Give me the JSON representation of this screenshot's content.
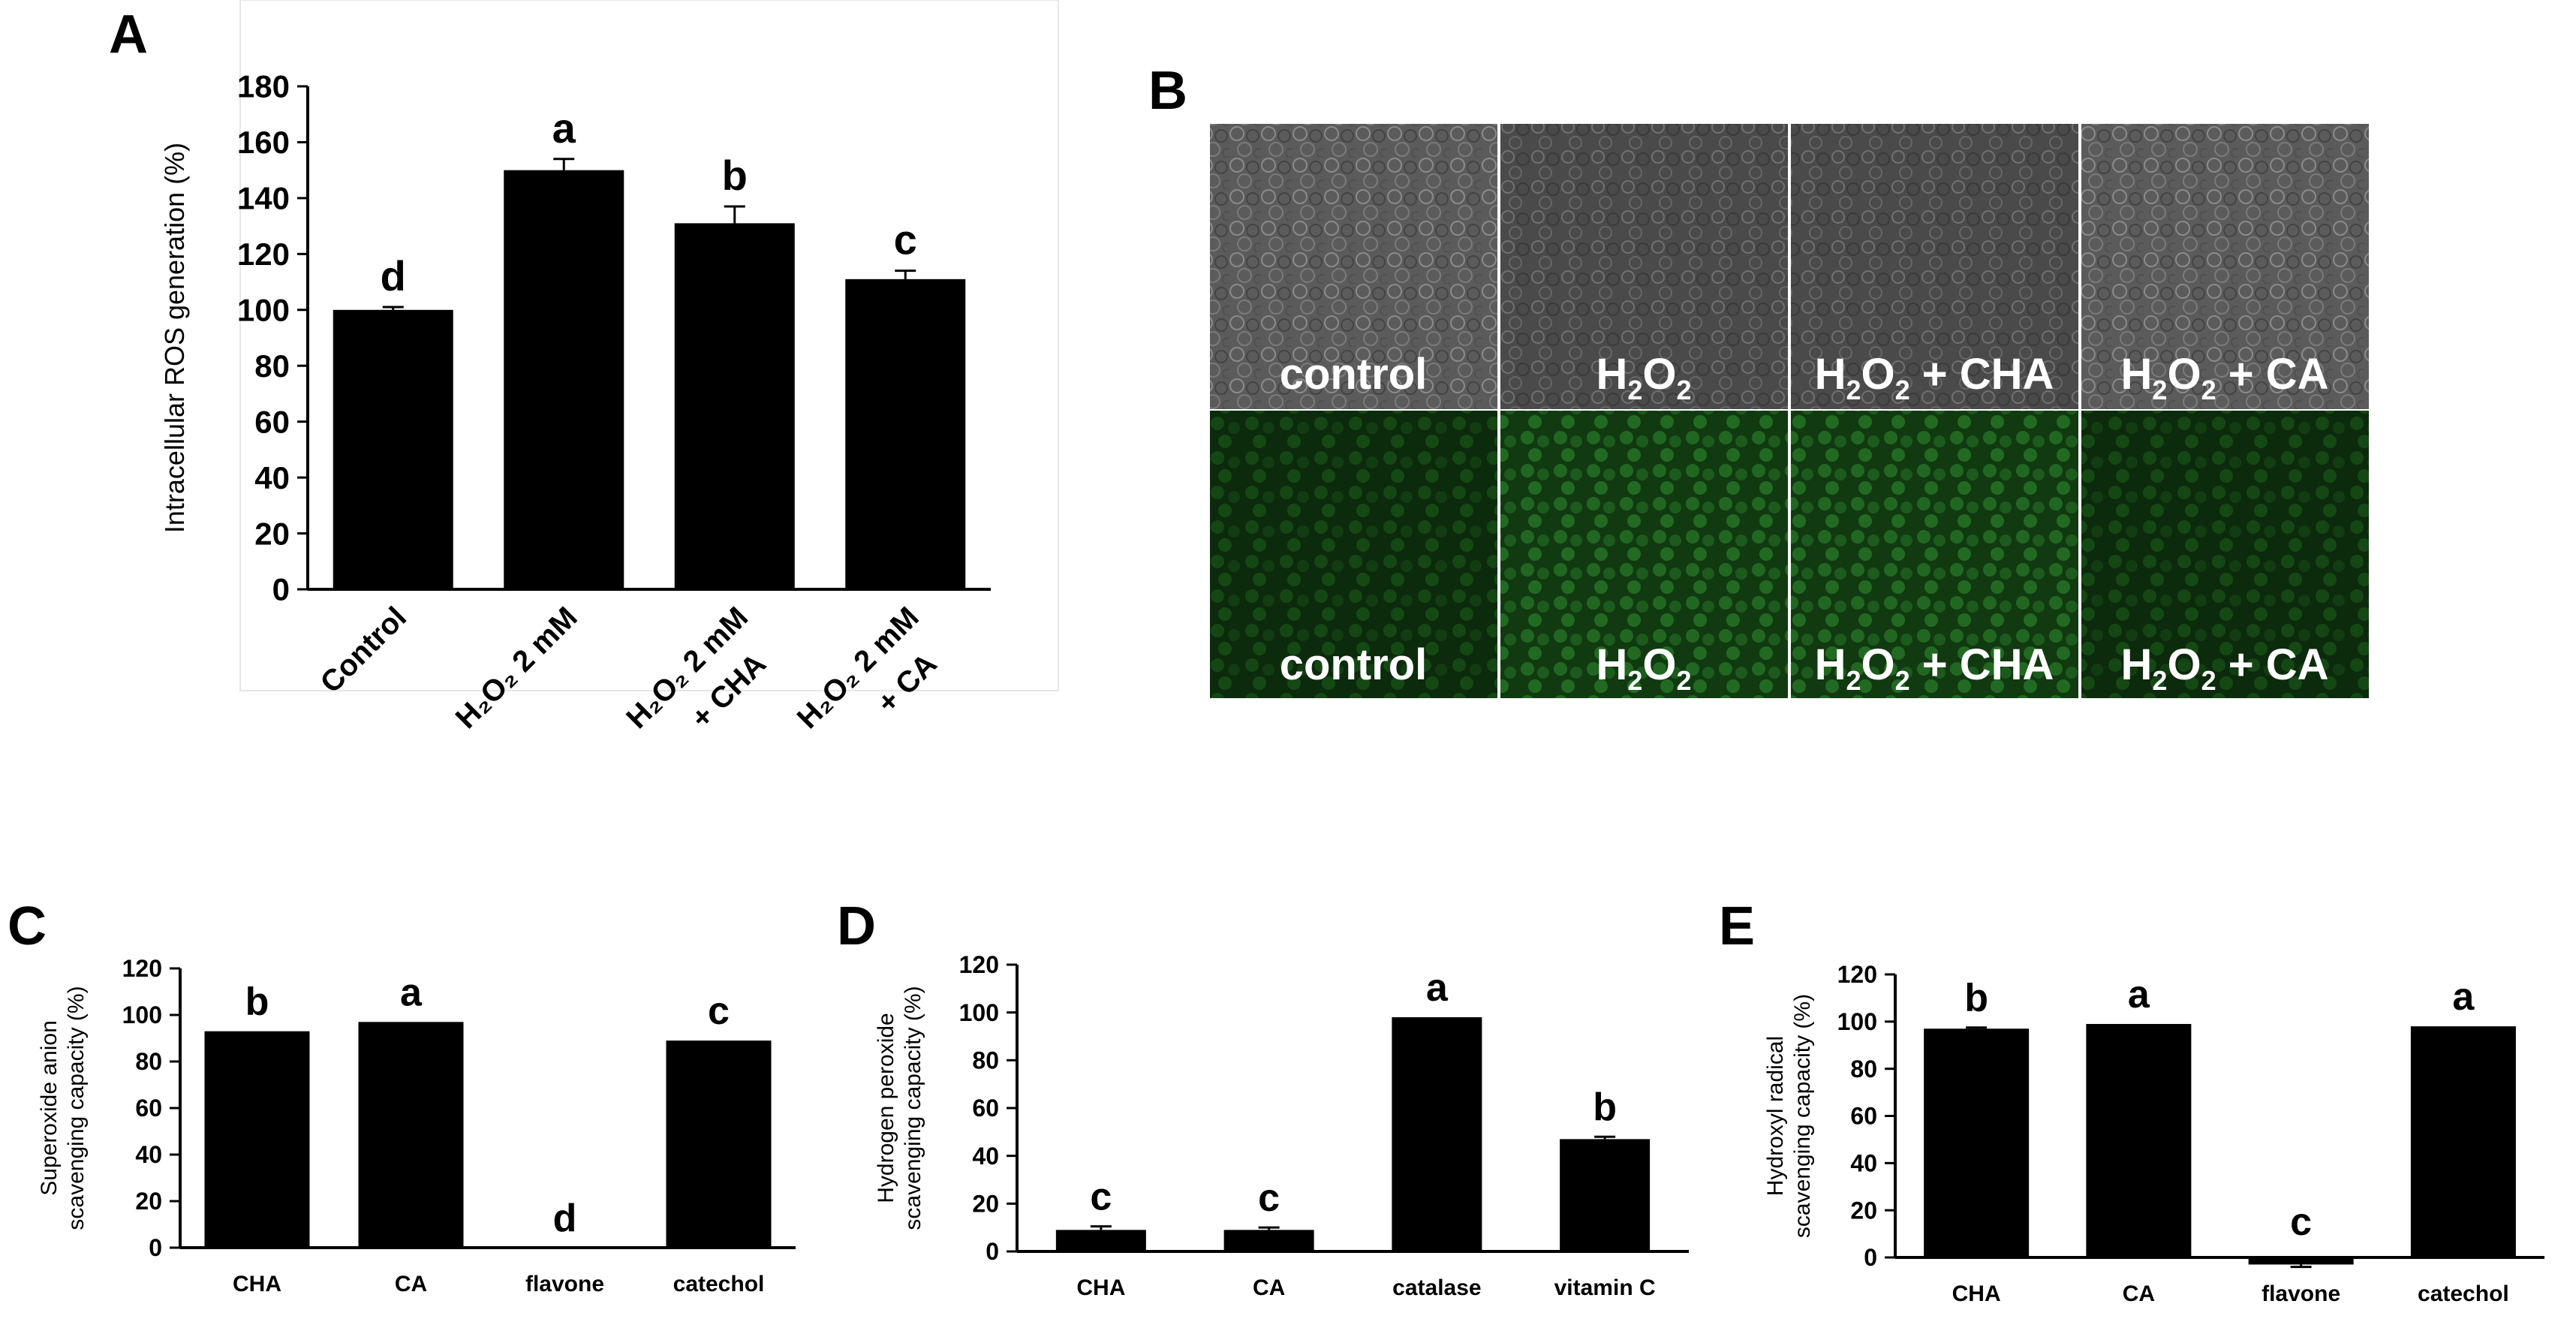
{
  "panels": {
    "A": "A",
    "B": "B",
    "C": "C",
    "D": "D",
    "E": "E"
  },
  "microscopy": {
    "brightfield_labels": [
      {
        "main": "control",
        "sub": "",
        "rest": ""
      },
      {
        "main": "H",
        "sub": "2",
        "mid": "O",
        "sub2": "2",
        "rest": ""
      },
      {
        "main": "H",
        "sub": "2",
        "mid": "O",
        "sub2": "2",
        "rest": " + CHA"
      },
      {
        "main": "H",
        "sub": "2",
        "mid": "O",
        "sub2": "2",
        "rest": " + CA"
      }
    ],
    "fluorescence_labels": [
      {
        "main": "control",
        "sub": "",
        "rest": ""
      },
      {
        "main": "H",
        "sub": "2",
        "mid": "O",
        "sub2": "2",
        "rest": ""
      },
      {
        "main": "H",
        "sub": "2",
        "mid": "O",
        "sub2": "2",
        "rest": " + CHA"
      },
      {
        "main": "H",
        "sub": "2",
        "mid": "O",
        "sub2": "2",
        "rest": " + CA"
      }
    ],
    "colors": {
      "brightfield": "#5a5a5a",
      "fluorescence": "#0e3a0e"
    }
  },
  "chart_data": [
    {
      "panel": "A",
      "type": "bar",
      "ylabel": "Intracellular ROS generation (%)",
      "ylim": [
        0,
        180
      ],
      "yticks": [
        0,
        20,
        40,
        60,
        80,
        100,
        120,
        140,
        160,
        180
      ],
      "categories": [
        "Control",
        "H2O2 2 mM",
        "H2O2 2 mM + CHA",
        "H2O2 2 mM + CA"
      ],
      "category_display": [
        {
          "line1": "Control",
          "line2": ""
        },
        {
          "line1": "H₂O₂ 2 mM",
          "line2": ""
        },
        {
          "line1": "H₂O₂ 2 mM",
          "line2": "+ CHA"
        },
        {
          "line1": "H₂O₂ 2 mM",
          "line2": "+ CA"
        }
      ],
      "values": [
        100,
        150,
        131,
        111
      ],
      "errors": [
        1,
        4,
        6,
        3
      ],
      "letters": [
        "d",
        "a",
        "b",
        "c"
      ],
      "bar_color": "#000000"
    },
    {
      "panel": "C",
      "type": "bar",
      "ylabel_lines": [
        "Superoxide anion",
        "scavenging capacity (%)"
      ],
      "ylim": [
        0,
        120
      ],
      "yticks": [
        0,
        20,
        40,
        60,
        80,
        100,
        120
      ],
      "categories": [
        "CHA",
        "CA",
        "flavone",
        "catechol"
      ],
      "values": [
        93,
        97,
        0,
        89
      ],
      "errors": [
        0,
        0,
        0,
        0
      ],
      "letters": [
        "b",
        "a",
        "d",
        "c"
      ],
      "bar_color": "#000000"
    },
    {
      "panel": "D",
      "type": "bar",
      "ylabel_lines": [
        "Hydrogen peroxide",
        "scavenging capacity (%)"
      ],
      "ylim": [
        0,
        120
      ],
      "yticks": [
        0,
        20,
        40,
        60,
        80,
        100,
        120
      ],
      "categories": [
        "CHA",
        "CA",
        "catalase",
        "vitamin C"
      ],
      "values": [
        9,
        9,
        98,
        47
      ],
      "errors": [
        1.5,
        1,
        0,
        1
      ],
      "letters": [
        "c",
        "c",
        "a",
        "b"
      ],
      "bar_color": "#000000"
    },
    {
      "panel": "E",
      "type": "bar",
      "ylabel_lines": [
        "Hydroxyl radical",
        "scavenging capacity (%)"
      ],
      "ylim": [
        0,
        120
      ],
      "yticks": [
        0,
        20,
        40,
        60,
        80,
        100,
        120
      ],
      "categories": [
        "CHA",
        "CA",
        "flavone",
        "catechol"
      ],
      "values": [
        97,
        99,
        -3,
        98
      ],
      "errors": [
        0.5,
        0,
        1,
        0
      ],
      "letters": [
        "b",
        "a",
        "c",
        "a"
      ],
      "bar_color": "#000000"
    }
  ]
}
